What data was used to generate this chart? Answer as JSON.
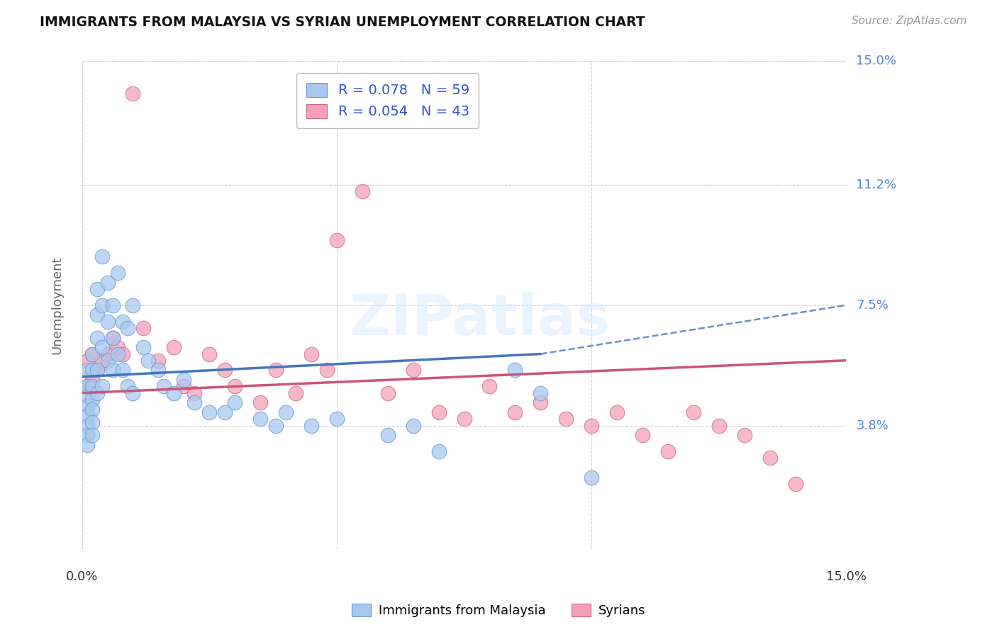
{
  "title": "IMMIGRANTS FROM MALAYSIA VS SYRIAN UNEMPLOYMENT CORRELATION CHART",
  "source": "Source: ZipAtlas.com",
  "ylabel": "Unemployment",
  "xlim": [
    0.0,
    0.15
  ],
  "ylim": [
    0.0,
    0.15
  ],
  "yticks": [
    0.0,
    0.038,
    0.075,
    0.112,
    0.15
  ],
  "ytick_labels": [
    "",
    "3.8%",
    "7.5%",
    "11.2%",
    "15.0%"
  ],
  "grid_color": "#d0d0d0",
  "bg_color": "#ffffff",
  "malaysia_R": 0.078,
  "malaysia_N": 59,
  "malaysia_color": "#a8c8f0",
  "malaysia_edge_color": "#6699cc",
  "malaysia_trend_color": "#4477bb",
  "syrian_R": 0.054,
  "syrian_N": 43,
  "syrian_color": "#f5a0b8",
  "syrian_edge_color": "#cc6688",
  "syrian_trend_color": "#cc5577",
  "malaysia_x": [
    0.001,
    0.001,
    0.001,
    0.001,
    0.001,
    0.001,
    0.001,
    0.001,
    0.002,
    0.002,
    0.002,
    0.002,
    0.002,
    0.002,
    0.002,
    0.003,
    0.003,
    0.003,
    0.003,
    0.003,
    0.004,
    0.004,
    0.004,
    0.004,
    0.005,
    0.005,
    0.005,
    0.006,
    0.006,
    0.006,
    0.007,
    0.007,
    0.008,
    0.008,
    0.009,
    0.009,
    0.01,
    0.01,
    0.012,
    0.013,
    0.015,
    0.016,
    0.018,
    0.02,
    0.022,
    0.025,
    0.028,
    0.03,
    0.035,
    0.038,
    0.04,
    0.045,
    0.05,
    0.06,
    0.065,
    0.07,
    0.085,
    0.09,
    0.1
  ],
  "malaysia_y": [
    0.055,
    0.05,
    0.047,
    0.044,
    0.041,
    0.038,
    0.035,
    0.032,
    0.06,
    0.055,
    0.05,
    0.046,
    0.043,
    0.039,
    0.035,
    0.08,
    0.072,
    0.065,
    0.055,
    0.048,
    0.09,
    0.075,
    0.062,
    0.05,
    0.082,
    0.07,
    0.058,
    0.075,
    0.065,
    0.055,
    0.085,
    0.06,
    0.07,
    0.055,
    0.068,
    0.05,
    0.075,
    0.048,
    0.062,
    0.058,
    0.055,
    0.05,
    0.048,
    0.052,
    0.045,
    0.042,
    0.042,
    0.045,
    0.04,
    0.038,
    0.042,
    0.038,
    0.04,
    0.035,
    0.038,
    0.03,
    0.055,
    0.048,
    0.022
  ],
  "syrian_x": [
    0.001,
    0.001,
    0.002,
    0.002,
    0.003,
    0.004,
    0.005,
    0.006,
    0.007,
    0.008,
    0.01,
    0.012,
    0.015,
    0.018,
    0.02,
    0.022,
    0.025,
    0.028,
    0.03,
    0.035,
    0.038,
    0.042,
    0.045,
    0.048,
    0.05,
    0.055,
    0.06,
    0.065,
    0.07,
    0.075,
    0.08,
    0.085,
    0.09,
    0.095,
    0.1,
    0.105,
    0.11,
    0.115,
    0.12,
    0.125,
    0.13,
    0.135,
    0.14
  ],
  "syrian_y": [
    0.058,
    0.05,
    0.06,
    0.052,
    0.055,
    0.058,
    0.06,
    0.065,
    0.062,
    0.06,
    0.14,
    0.068,
    0.058,
    0.062,
    0.05,
    0.048,
    0.06,
    0.055,
    0.05,
    0.045,
    0.055,
    0.048,
    0.06,
    0.055,
    0.095,
    0.11,
    0.048,
    0.055,
    0.042,
    0.04,
    0.05,
    0.042,
    0.045,
    0.04,
    0.038,
    0.042,
    0.035,
    0.03,
    0.042,
    0.038,
    0.035,
    0.028,
    0.02
  ],
  "malaysia_trend_x0": 0.0,
  "malaysia_trend_x1": 0.09,
  "malaysia_trend_x2": 0.15,
  "malaysia_trend_y0": 0.053,
  "malaysia_trend_y1": 0.06,
  "malaysia_trend_y2": 0.075,
  "syrian_trend_x0": 0.0,
  "syrian_trend_x1": 0.15,
  "syrian_trend_y0": 0.048,
  "syrian_trend_y1": 0.058
}
